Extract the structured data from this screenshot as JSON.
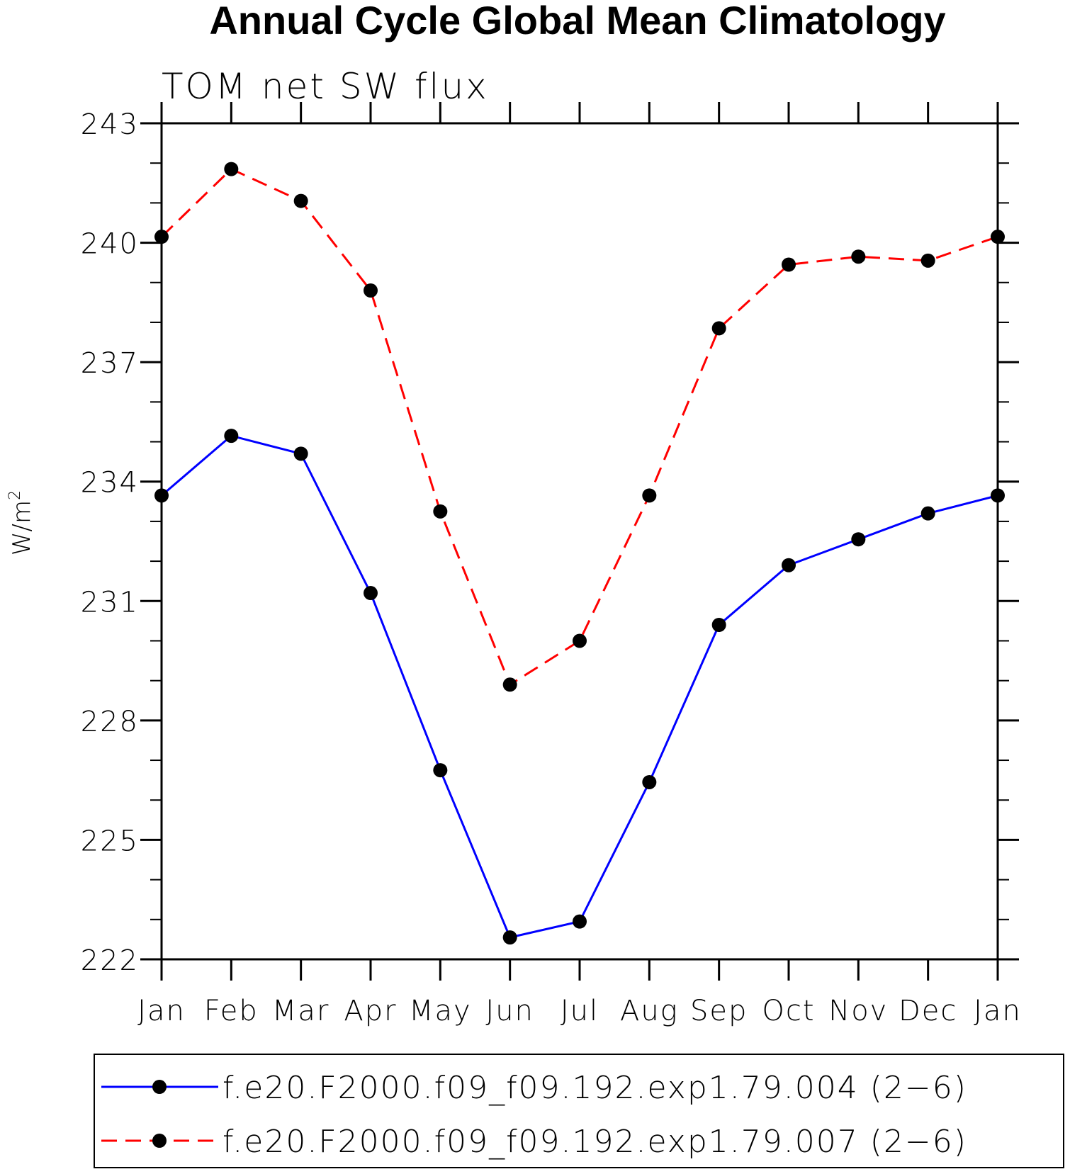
{
  "chart_data": {
    "type": "line",
    "title": "Annual Cycle Global Mean Climatology",
    "subtitle": "TOM net SW flux",
    "ylabel": "W/m",
    "ylabel_superscript": "2",
    "xlabel": "",
    "categories": [
      "Jan",
      "Feb",
      "Mar",
      "Apr",
      "May",
      "Jun",
      "Jul",
      "Aug",
      "Sep",
      "Oct",
      "Nov",
      "Dec",
      "Jan"
    ],
    "ylim": [
      222,
      243
    ],
    "yticks": [
      222,
      225,
      228,
      231,
      234,
      237,
      240,
      243
    ],
    "yticks_labels": [
      "222",
      "225",
      "228",
      "231",
      "234",
      "237",
      "240",
      "243"
    ],
    "legend_position": "bottom",
    "series": [
      {
        "name": "f.e20.F2000.f09_f09.192.exp1.79.004 (2−6)",
        "color": "#0000ff",
        "dash": "solid",
        "values": [
          233.65,
          235.15,
          234.7,
          231.2,
          226.75,
          222.55,
          222.95,
          226.45,
          230.4,
          231.9,
          232.55,
          233.2,
          233.65
        ]
      },
      {
        "name": "f.e20.F2000.f09_f09.192.exp1.79.007 (2−6)",
        "color": "#ff0000",
        "dash": "dashed",
        "values": [
          240.15,
          241.85,
          241.05,
          238.8,
          233.25,
          228.9,
          230.0,
          233.65,
          237.85,
          239.45,
          239.65,
          239.55,
          240.15
        ]
      }
    ]
  }
}
